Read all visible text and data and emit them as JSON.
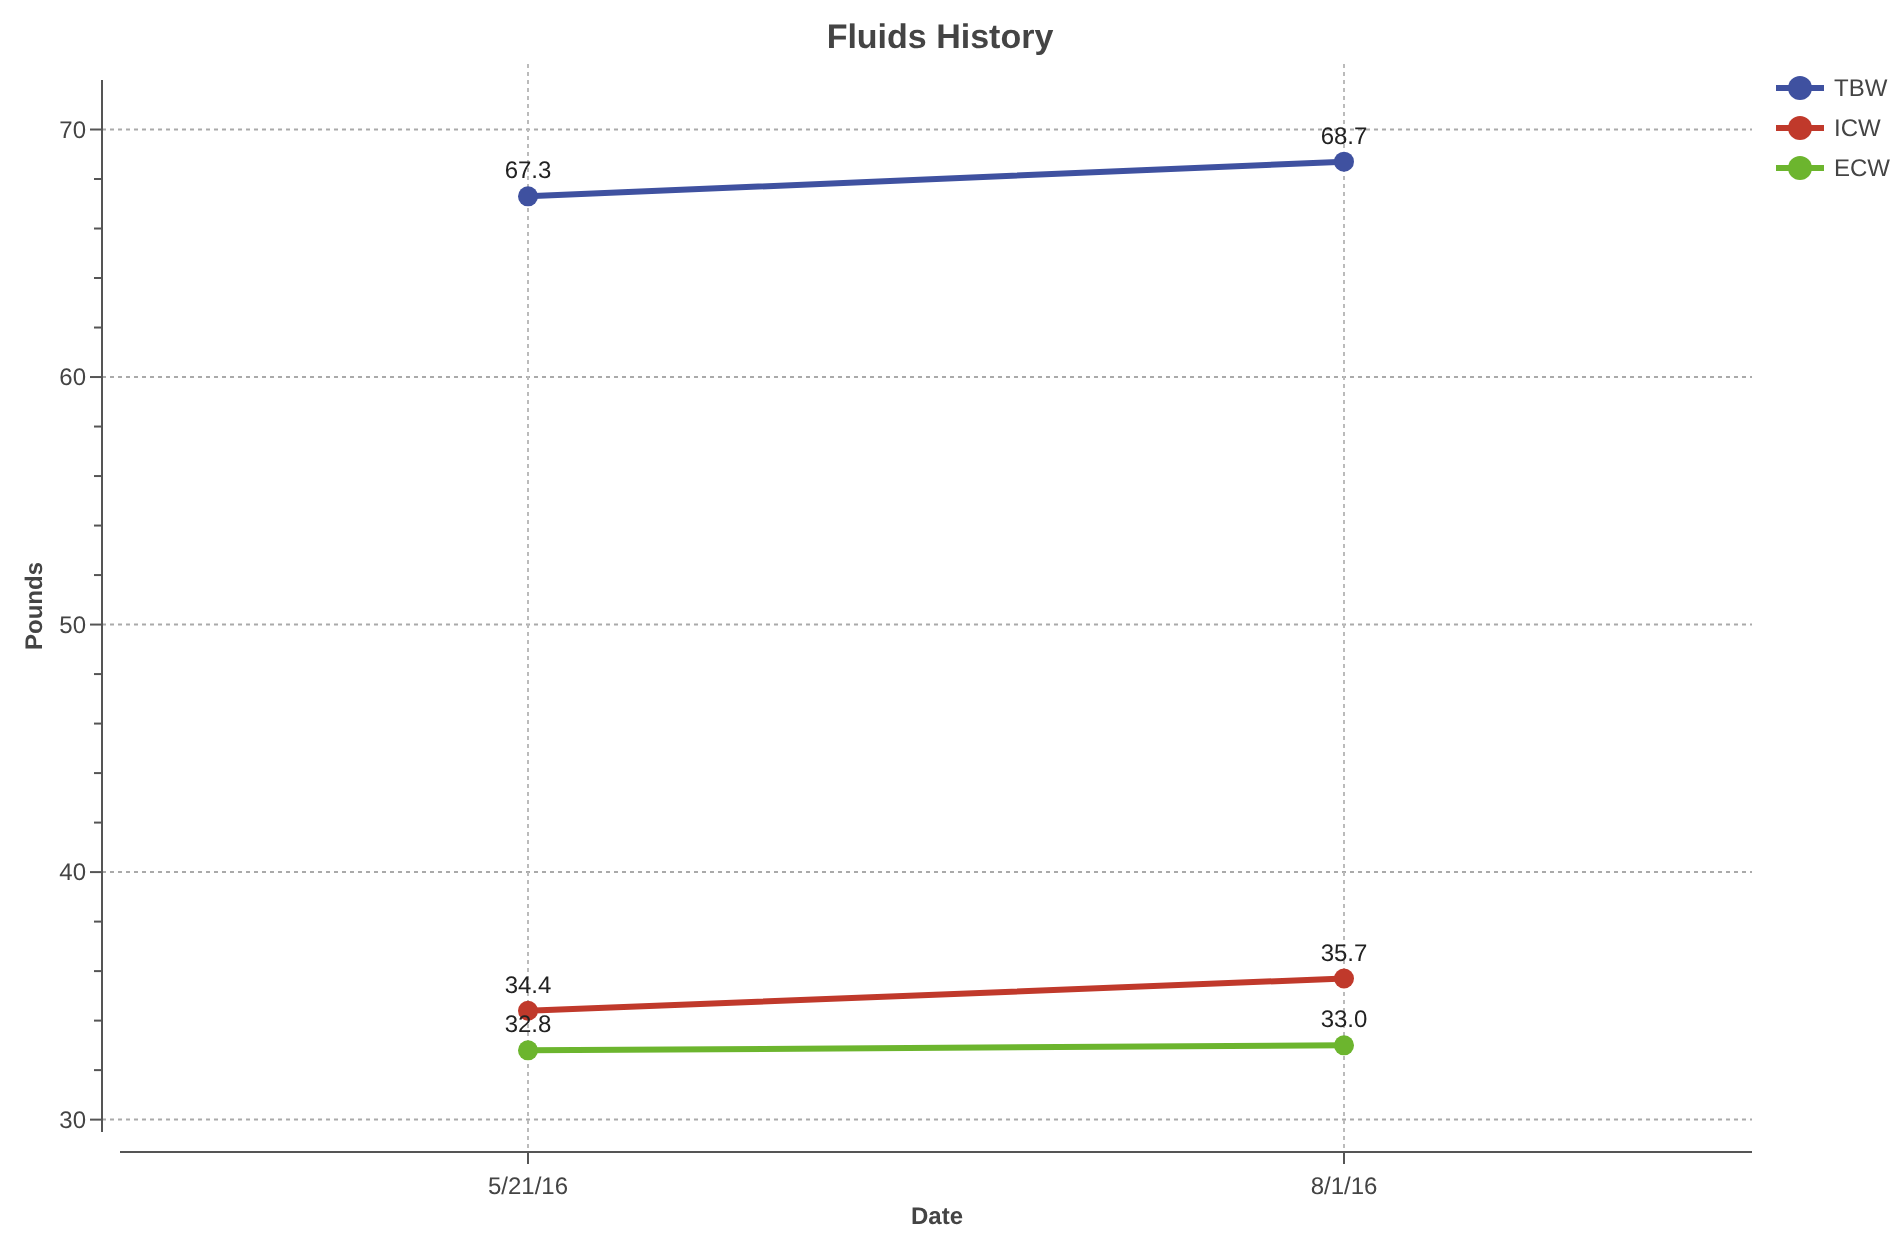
{
  "chart_data": {
    "type": "line",
    "title": "Fluids History",
    "xlabel": "Date",
    "ylabel": "Pounds",
    "categories": [
      "5/21/16",
      "8/1/16"
    ],
    "series": [
      {
        "name": "TBW",
        "color": "#3f51a0",
        "values": [
          67.3,
          68.7
        ],
        "value_labels": [
          "67.3",
          "68.7"
        ]
      },
      {
        "name": "ICW",
        "color": "#c0392b",
        "values": [
          34.4,
          35.7
        ],
        "value_labels": [
          "34.4",
          "35.7"
        ]
      },
      {
        "name": "ECW",
        "color": "#6cb52e",
        "values": [
          32.8,
          33.0
        ],
        "value_labels": [
          "32.8",
          "33.0"
        ]
      }
    ],
    "ylim": [
      29.5,
      72
    ],
    "yticks": [
      30,
      {
        "value": 32,
        "label": null
      },
      {
        "value": 34,
        "label": null
      },
      {
        "value": 36,
        "label": null
      },
      {
        "value": 38,
        "label": null
      },
      40,
      {
        "value": 42,
        "label": null
      },
      {
        "value": 44,
        "label": null
      },
      {
        "value": 46,
        "label": null
      },
      {
        "value": 48,
        "label": null
      },
      50,
      {
        "value": 52,
        "label": null
      },
      {
        "value": 54,
        "label": null
      },
      {
        "value": 56,
        "label": null
      },
      {
        "value": 58,
        "label": null
      },
      60,
      {
        "value": 62,
        "label": null
      },
      {
        "value": 64,
        "label": null
      },
      {
        "value": 66,
        "label": null
      },
      {
        "value": 68,
        "label": null
      },
      70
    ],
    "grid": true,
    "legend": "top right",
    "marker": "circle",
    "line_style": "solid"
  }
}
